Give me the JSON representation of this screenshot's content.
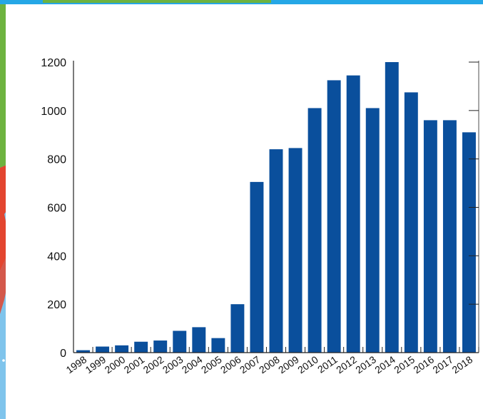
{
  "colors": {
    "bar": "#0a4f9c",
    "axis": "#222222",
    "map_green": "#6db33f",
    "map_red": "#e3452f",
    "map_blue": "#7fc4ec",
    "top_bar": "#25a7e6"
  },
  "chart_data": {
    "type": "bar",
    "categories": [
      "1998",
      "1999",
      "2000",
      "2001",
      "2002",
      "2003",
      "2004",
      "2005",
      "2006",
      "2007",
      "2008",
      "2009",
      "2010",
      "2011",
      "2012",
      "2013",
      "2014",
      "2015",
      "2016",
      "2017",
      "2018"
    ],
    "values": [
      10,
      25,
      30,
      45,
      50,
      90,
      105,
      60,
      200,
      705,
      840,
      845,
      1010,
      1125,
      1145,
      1010,
      1200,
      1075,
      960,
      960,
      910
    ],
    "yticks": [
      "0",
      "200",
      "400",
      "600",
      "800",
      "1000",
      "1200"
    ],
    "ylim": [
      0,
      1200
    ],
    "title": "",
    "xlabel": "",
    "ylabel": "",
    "grid": false,
    "legend": "none"
  }
}
